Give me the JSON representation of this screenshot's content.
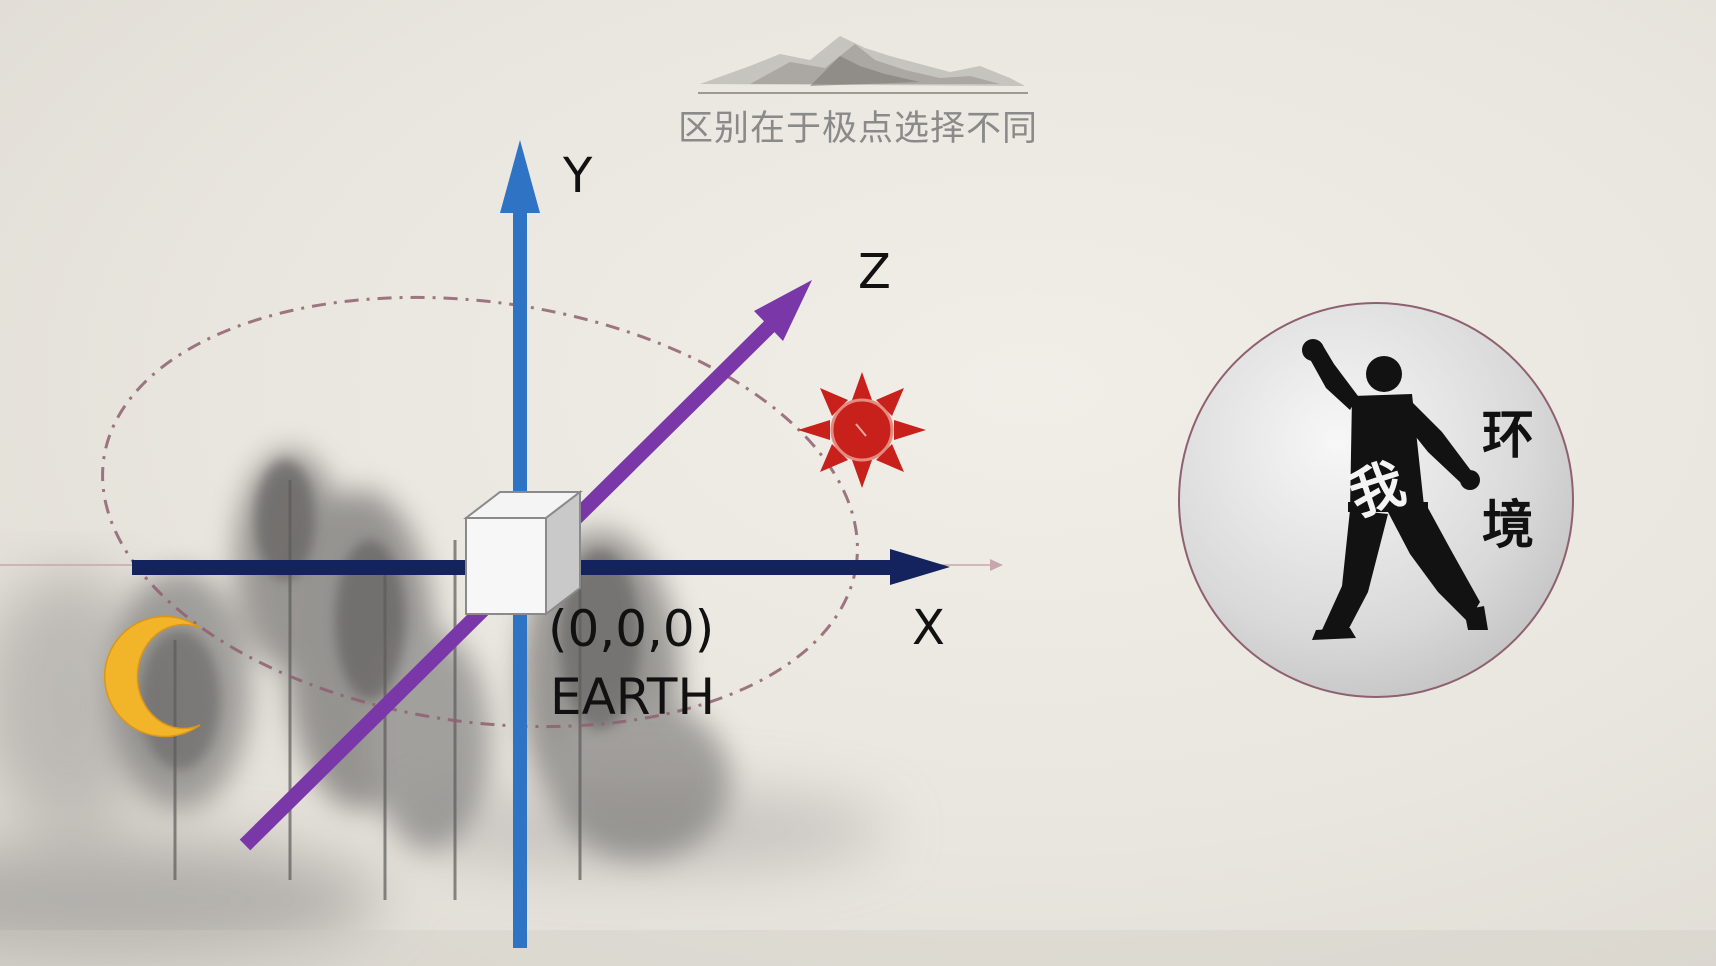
{
  "slide": {
    "title": "区别在于极点选择不同"
  },
  "axes": {
    "y_label": "Y",
    "z_label": "Z",
    "x_label": "X"
  },
  "origin": {
    "coords": "(0,0,0)",
    "name": "EARTH"
  },
  "emblem": {
    "char_self": "我",
    "char_env_1": "环",
    "char_env_2": "境"
  },
  "colors": {
    "y_axis": "#2f73c4",
    "x_axis": "#14225e",
    "z_axis": "#7a37a8",
    "orbit": "#8e6070",
    "sun": "#c8211c",
    "moon": "#f2b429"
  },
  "icons": [
    "mountain-ink-icon",
    "sun-icon",
    "moon-icon",
    "cube-icon",
    "karate-figure-icon",
    "ink-trees"
  ]
}
